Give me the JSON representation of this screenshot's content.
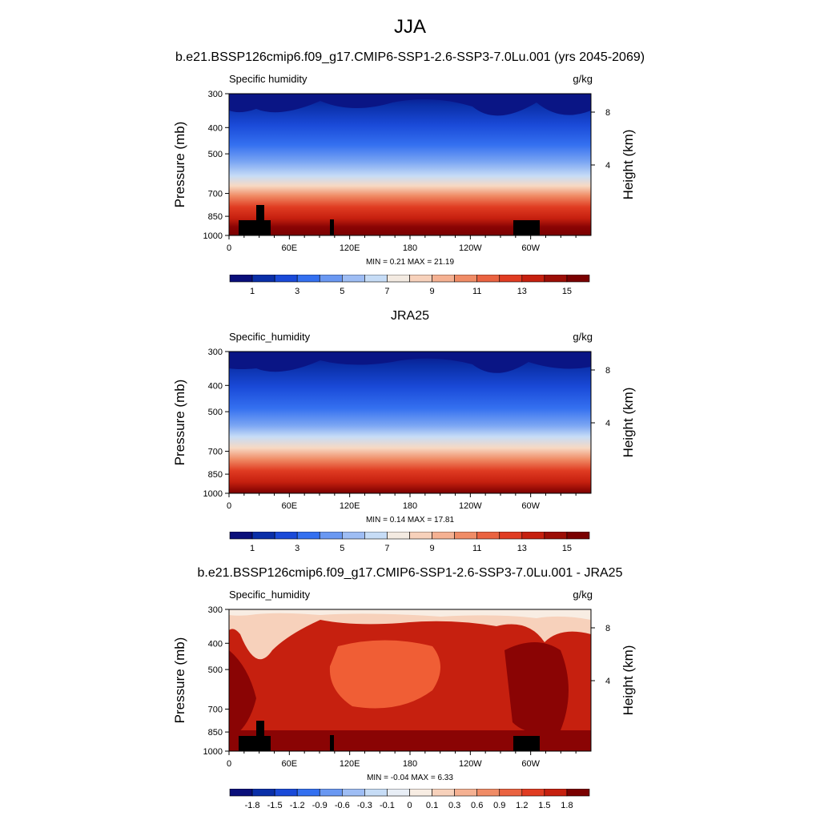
{
  "figure": {
    "title": "JJA",
    "case_title": "b.e21.BSSP126cmip6.f09_g17.CMIP6-SSP1-2.6-SSP3-7.0Lu.001 (yrs 2045-2069)",
    "obs_title": "JRA25",
    "diff_title": "b.e21.BSSP126cmip6.f09_g17.CMIP6-SSP1-2.6-SSP3-7.0Lu.001 - JRA25"
  },
  "chart_data": [
    {
      "type": "heatmap",
      "variable": "Specific humidity",
      "units": "g/kg",
      "ylabel": "Pressure (mb)",
      "y2label": "Height (km)",
      "x_ticks": [
        "0",
        "60E",
        "120E",
        "180",
        "120W",
        "60W"
      ],
      "x_range": [
        0,
        360
      ],
      "y_ticks": [
        300,
        400,
        500,
        700,
        850,
        1000
      ],
      "y2_ticks": [
        8,
        4
      ],
      "ylim": [
        1000,
        300
      ],
      "y_scale": "log",
      "min": 0.21,
      "max": 21.19,
      "min_label": "MIN =   0.21  MAX =  21.19",
      "colorbar_labels": [
        "1",
        "3",
        "5",
        "7",
        "9",
        "11",
        "13",
        "15"
      ],
      "colorbar_levels": [
        0,
        1,
        2,
        3,
        4,
        5,
        6,
        7,
        8,
        9,
        10,
        11,
        12,
        13,
        14,
        15,
        16
      ],
      "colorbar_colors": [
        "#0a0f7a",
        "#0a2fa8",
        "#1a4ad8",
        "#3470f0",
        "#6a98f2",
        "#9ebdf4",
        "#c6dcf6",
        "#f3eae1",
        "#f7d1bb",
        "#f5b192",
        "#f08c66",
        "#ea6341",
        "#e03c22",
        "#c6200f",
        "#9c0e06",
        "#7a0000"
      ],
      "topography_mask": true
    },
    {
      "type": "heatmap",
      "variable": "Specific_humidity",
      "units": "g/kg",
      "ylabel": "Pressure (mb)",
      "y2label": "Height (km)",
      "x_ticks": [
        "0",
        "60E",
        "120E",
        "180",
        "120W",
        "60W"
      ],
      "x_range": [
        0,
        360
      ],
      "y_ticks": [
        300,
        400,
        500,
        700,
        850,
        1000
      ],
      "y2_ticks": [
        8,
        4
      ],
      "ylim": [
        1000,
        300
      ],
      "y_scale": "log",
      "min": 0.14,
      "max": 17.81,
      "min_label": "MIN =   0.14  MAX =  17.81",
      "colorbar_labels": [
        "1",
        "3",
        "5",
        "7",
        "9",
        "11",
        "13",
        "15"
      ],
      "colorbar_levels": [
        0,
        1,
        2,
        3,
        4,
        5,
        6,
        7,
        8,
        9,
        10,
        11,
        12,
        13,
        14,
        15,
        16
      ],
      "colorbar_colors": [
        "#0a0f7a",
        "#0a2fa8",
        "#1a4ad8",
        "#3470f0",
        "#6a98f2",
        "#9ebdf4",
        "#c6dcf6",
        "#f3eae1",
        "#f7d1bb",
        "#f5b192",
        "#f08c66",
        "#ea6341",
        "#e03c22",
        "#c6200f",
        "#9c0e06",
        "#7a0000"
      ],
      "topography_mask": false
    },
    {
      "type": "heatmap",
      "variable": "Specific_humidity",
      "units": "g/kg",
      "ylabel": "Pressure (mb)",
      "y2label": "Height (km)",
      "x_ticks": [
        "0",
        "60E",
        "120E",
        "180",
        "120W",
        "60W"
      ],
      "x_range": [
        0,
        360
      ],
      "y_ticks": [
        300,
        400,
        500,
        700,
        850,
        1000
      ],
      "y2_ticks": [
        8,
        4
      ],
      "ylim": [
        1000,
        300
      ],
      "y_scale": "log",
      "min": -0.04,
      "max": 6.33,
      "min_label": "MIN =  -0.04  MAX =   6.33",
      "colorbar_labels": [
        "-1.8",
        "-1.5",
        "-1.2",
        "-0.9",
        "-0.6",
        "-0.3",
        "-0.1",
        "0",
        "0.1",
        "0.3",
        "0.6",
        "0.9",
        "1.2",
        "1.5",
        "1.8"
      ],
      "colorbar_colors": [
        "#0a0f7a",
        "#0a2fa8",
        "#1a4ad8",
        "#3470f0",
        "#6a98f2",
        "#9ebdf4",
        "#c6dcf6",
        "#e8eef6",
        "#f8ede3",
        "#f7d1bb",
        "#f5b192",
        "#f08c66",
        "#ea6341",
        "#e03c22",
        "#c6200f",
        "#7a0000"
      ],
      "topography_mask": true
    }
  ]
}
